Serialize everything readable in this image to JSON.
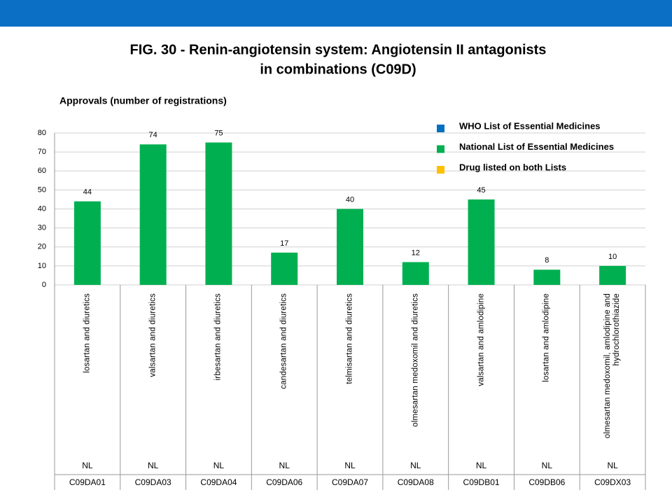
{
  "chart_data": {
    "type": "bar",
    "title": [
      "FIG. 30 - Renin-angiotensin system: Angiotensin II antagonists",
      "in combinations (C09D)"
    ],
    "subtitle": "Approvals (number of registrations)",
    "categories": [
      "losartan and diuretics",
      "valsartan and diuretics",
      "irbesartan and diuretics",
      "candesartan and diuretics",
      "telmisartan and diuretics",
      "olmesartan medoxomil and diuretics",
      "valsartan and amlodipine",
      "losartan and amlodipine",
      "olmesartan medoxomil, amlodipine and hydrochlorothiazide"
    ],
    "list_labels": [
      "NL",
      "NL",
      "NL",
      "NL",
      "NL",
      "NL",
      "NL",
      "NL",
      "NL"
    ],
    "codes": [
      "C09DA01",
      "C09DA03",
      "C09DA04",
      "C09DA06",
      "C09DA07",
      "C09DA08",
      "C09DB01",
      "C09DB06",
      "C09DX03"
    ],
    "series": [
      {
        "name": "National List of Essential Medicines",
        "color": "#00b050",
        "values": [
          44,
          74,
          75,
          17,
          40,
          12,
          45,
          8,
          10
        ]
      }
    ],
    "legend": [
      {
        "name": "WHO List of Essential Medicines",
        "color": "#0070c0"
      },
      {
        "name": "National List of Essential Medicines",
        "color": "#00b050"
      },
      {
        "name": "Drug listed on both Lists",
        "color": "#ffc000"
      }
    ],
    "ylim": [
      0,
      80
    ],
    "yticks": [
      0,
      10,
      20,
      30,
      40,
      50,
      60,
      70,
      80
    ],
    "grid": true
  }
}
